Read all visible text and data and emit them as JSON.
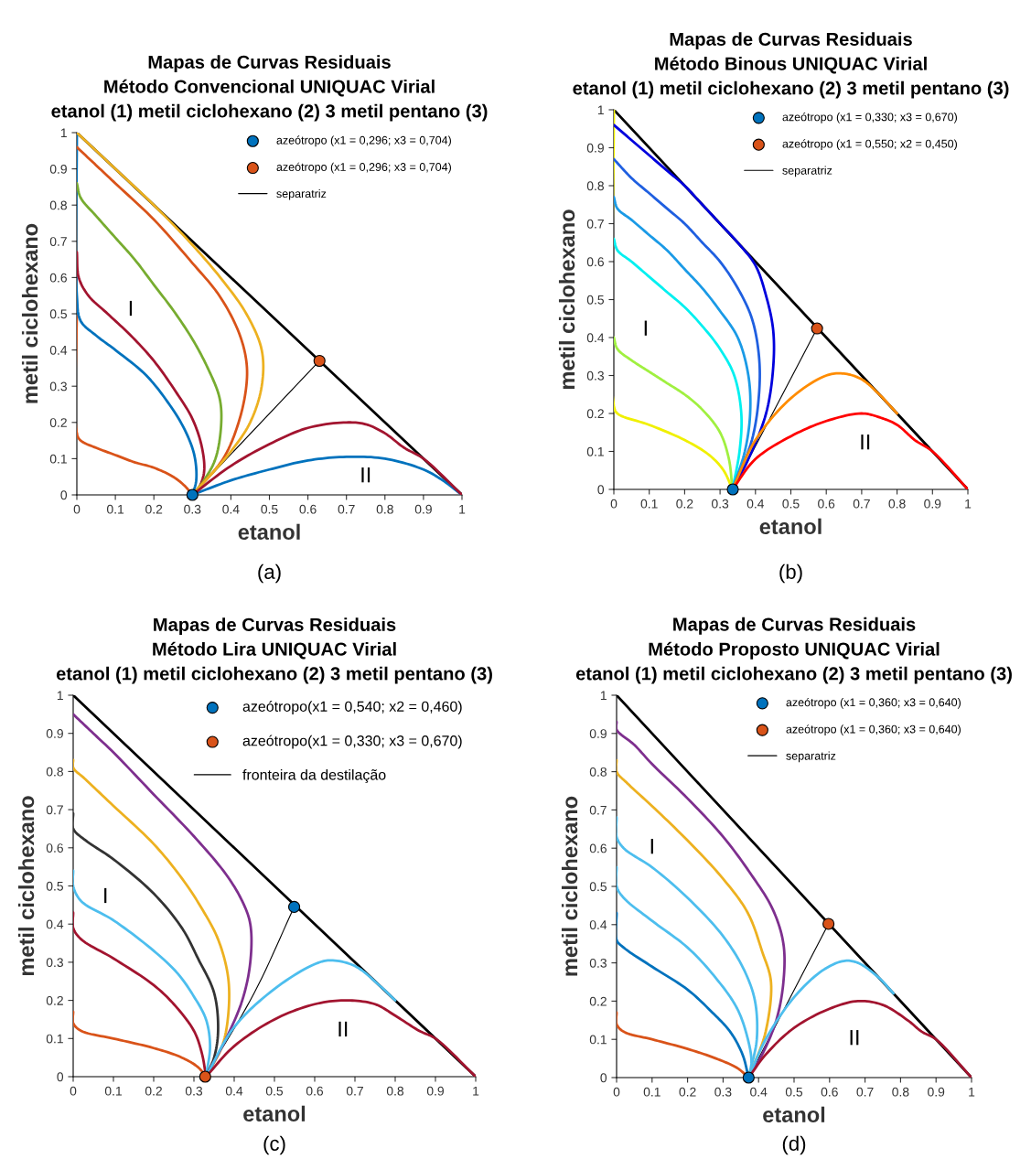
{
  "chart_data": [
    {
      "type": "line",
      "title": "Mapas de Curvas Residuais\nMétodo Convencional UNIQUAC Virial\netanol (1) metil ciclohexano (2) 3 metil pentano (3)",
      "xlabel": "etanol",
      "ylabel": "metil ciclohexano",
      "xlim": [
        0,
        1
      ],
      "ylim": [
        0,
        1
      ],
      "xticks": [
        0,
        0.1,
        0.2,
        0.3,
        0.4,
        0.5,
        0.6,
        0.7,
        0.8,
        0.9,
        1
      ],
      "yticks": [
        0,
        0.1,
        0.2,
        0.3,
        0.4,
        0.5,
        0.6,
        0.7,
        0.8,
        0.9,
        1
      ],
      "legend": "top right",
      "annotations": [
        "I",
        "II",
        "(a)"
      ],
      "series": [
        {
          "type": "line",
          "color": "#000000",
          "x": [
            0,
            1
          ],
          "values": [
            1,
            0
          ]
        },
        {
          "type": "line",
          "color": "#d95319",
          "x": [
            0,
            0,
            0.01,
            0.05,
            0.1,
            0.15,
            0.2,
            0.25,
            0.28,
            0.3
          ],
          "values": [
            0.52,
            0.17,
            0.15,
            0.13,
            0.11,
            0.09,
            0.075,
            0.05,
            0.025,
            0
          ]
        },
        {
          "type": "line",
          "color": "#0072bd",
          "x": [
            0,
            0,
            0.01,
            0.05,
            0.1,
            0.18,
            0.24,
            0.28,
            0.305,
            0.31,
            0.3
          ],
          "values": [
            1,
            0.55,
            0.48,
            0.44,
            0.4,
            0.33,
            0.25,
            0.18,
            0.11,
            0.04,
            0
          ]
        },
        {
          "type": "line",
          "color": "#a2142f",
          "x": [
            0,
            0.005,
            0.03,
            0.08,
            0.14,
            0.2,
            0.26,
            0.3,
            0.325,
            0.33,
            0.31
          ],
          "values": [
            0.67,
            0.6,
            0.55,
            0.5,
            0.44,
            0.37,
            0.28,
            0.21,
            0.13,
            0.06,
            0
          ]
        },
        {
          "type": "line",
          "color": "#77ac30",
          "x": [
            0,
            0.01,
            0.05,
            0.1,
            0.15,
            0.2,
            0.25,
            0.3,
            0.34,
            0.37,
            0.375,
            0.36,
            0.33,
            0.3
          ],
          "values": [
            0.86,
            0.82,
            0.77,
            0.71,
            0.65,
            0.58,
            0.51,
            0.43,
            0.35,
            0.27,
            0.2,
            0.1,
            0.04,
            0
          ]
        },
        {
          "type": "line",
          "color": "#d95319",
          "x": [
            0,
            0.05,
            0.1,
            0.2,
            0.3,
            0.37,
            0.42,
            0.44,
            0.44,
            0.42,
            0.38,
            0.3
          ],
          "values": [
            0.96,
            0.91,
            0.86,
            0.76,
            0.64,
            0.55,
            0.45,
            0.37,
            0.3,
            0.2,
            0.1,
            0
          ]
        },
        {
          "type": "line",
          "color": "#edb120",
          "x": [
            0,
            0.1,
            0.2,
            0.3,
            0.38,
            0.44,
            0.48,
            0.48,
            0.45,
            0.4,
            0.3
          ],
          "values": [
            1,
            0.9,
            0.8,
            0.69,
            0.59,
            0.5,
            0.4,
            0.3,
            0.2,
            0.12,
            0
          ]
        },
        {
          "type": "line",
          "color": "#0072bd",
          "x": [
            0.3,
            0.4,
            0.5,
            0.6,
            0.7,
            0.8,
            0.9,
            0.95,
            1
          ],
          "values": [
            0,
            0.04,
            0.07,
            0.095,
            0.105,
            0.1,
            0.07,
            0.04,
            0
          ]
        },
        {
          "type": "line",
          "color": "#a2142f",
          "x": [
            0.3,
            0.4,
            0.5,
            0.6,
            0.7,
            0.75,
            0.8,
            0.85,
            0.9,
            1
          ],
          "values": [
            0,
            0.08,
            0.14,
            0.185,
            0.2,
            0.195,
            0.17,
            0.13,
            0.1,
            0
          ]
        },
        {
          "type": "scatter",
          "name": "azeótropo (x1 = 0,296; x3 = 0,704)",
          "color": "#0072bd",
          "marker": "circle",
          "x": [
            0.3
          ],
          "values": [
            0
          ]
        },
        {
          "type": "scatter",
          "name": "azeótropo (x1 = 0,296; x3 = 0,704)",
          "color": "#d95319",
          "marker": "circle",
          "x": [
            0.63
          ],
          "values": [
            0.37
          ]
        },
        {
          "type": "line",
          "name": "separatriz",
          "color": "#000000",
          "x": [
            0.3,
            0.63
          ],
          "values": [
            0,
            0.37
          ]
        }
      ]
    },
    {
      "type": "line",
      "title": "Mapas de Curvas Residuais\nMétodo Binous UNIQUAC Virial\netanol (1) metil ciclohexano (2) 3 metil pentano (3)",
      "xlabel": "etanol",
      "ylabel": "metil ciclohexano",
      "xlim": [
        0,
        1
      ],
      "ylim": [
        0,
        1
      ],
      "xticks": [
        0,
        0.1,
        0.2,
        0.3,
        0.4,
        0.5,
        0.6,
        0.7,
        0.8,
        0.9,
        1
      ],
      "yticks": [
        0,
        0.1,
        0.2,
        0.3,
        0.4,
        0.5,
        0.6,
        0.7,
        0.8,
        0.9,
        1
      ],
      "legend": "top right",
      "annotations": [
        "I",
        "II",
        "(b)"
      ],
      "series": [
        {
          "type": "line",
          "color": "#000000",
          "x": [
            0,
            1
          ],
          "values": [
            1,
            0
          ]
        },
        {
          "type": "line",
          "color": "#f0f000",
          "x": [
            0,
            0,
            0.01,
            0.1,
            0.2,
            0.27,
            0.31,
            0.335
          ],
          "values": [
            1,
            0.22,
            0.2,
            0.17,
            0.13,
            0.09,
            0.05,
            0
          ]
        },
        {
          "type": "line",
          "color": "#a0f040",
          "x": [
            0,
            0.01,
            0.05,
            0.1,
            0.15,
            0.2,
            0.25,
            0.3,
            0.325,
            0.335
          ],
          "values": [
            0.4,
            0.37,
            0.34,
            0.31,
            0.28,
            0.25,
            0.21,
            0.15,
            0.08,
            0
          ]
        },
        {
          "type": "line",
          "color": "#00f0f0",
          "x": [
            0,
            0.01,
            0.05,
            0.1,
            0.15,
            0.2,
            0.25,
            0.3,
            0.34,
            0.36,
            0.355,
            0.335
          ],
          "values": [
            0.66,
            0.63,
            0.6,
            0.56,
            0.52,
            0.48,
            0.43,
            0.37,
            0.3,
            0.2,
            0.1,
            0
          ]
        },
        {
          "type": "line",
          "color": "#1a9ae6",
          "x": [
            0,
            0.01,
            0.05,
            0.1,
            0.15,
            0.2,
            0.25,
            0.3,
            0.35,
            0.38,
            0.385,
            0.37,
            0.335
          ],
          "values": [
            0.77,
            0.74,
            0.71,
            0.67,
            0.63,
            0.58,
            0.53,
            0.47,
            0.4,
            0.3,
            0.2,
            0.1,
            0
          ]
        },
        {
          "type": "line",
          "color": "#1f5fe0",
          "x": [
            0,
            0.05,
            0.1,
            0.15,
            0.2,
            0.25,
            0.3,
            0.35,
            0.39,
            0.41,
            0.41,
            0.39,
            0.335
          ],
          "values": [
            0.87,
            0.82,
            0.78,
            0.74,
            0.7,
            0.65,
            0.6,
            0.53,
            0.45,
            0.35,
            0.25,
            0.13,
            0
          ]
        },
        {
          "type": "line",
          "color": "#0000dd",
          "x": [
            0,
            0.05,
            0.1,
            0.15,
            0.2,
            0.25,
            0.3,
            0.35,
            0.4,
            0.43,
            0.45,
            0.45,
            0.43,
            0.38,
            0.335
          ],
          "values": [
            0.96,
            0.92,
            0.88,
            0.84,
            0.8,
            0.75,
            0.7,
            0.65,
            0.59,
            0.51,
            0.42,
            0.32,
            0.2,
            0.08,
            0
          ]
        },
        {
          "type": "line",
          "color": "#ff8c00",
          "x": [
            0.335,
            0.4,
            0.5,
            0.6,
            0.65,
            0.7,
            0.75,
            0.8
          ],
          "values": [
            0,
            0.13,
            0.24,
            0.3,
            0.305,
            0.29,
            0.25,
            0.2
          ]
        },
        {
          "type": "line",
          "color": "#ff0000",
          "x": [
            0.335,
            0.4,
            0.5,
            0.6,
            0.7,
            0.75,
            0.8,
            0.85,
            0.9,
            1
          ],
          "values": [
            0,
            0.08,
            0.14,
            0.18,
            0.2,
            0.19,
            0.17,
            0.13,
            0.1,
            0
          ]
        },
        {
          "type": "scatter",
          "name": "azeótropo (x1 = 0,330; x3 = 0,670)",
          "color": "#0072bd",
          "marker": "circle",
          "x": [
            0.336
          ],
          "values": [
            0
          ]
        },
        {
          "type": "scatter",
          "name": "azeótropo (x1 = 0,550; x2 = 0,450)",
          "color": "#d95319",
          "marker": "circle",
          "x": [
            0.574
          ],
          "values": [
            0.424
          ]
        },
        {
          "type": "line",
          "name": "separatriz",
          "color": "#000000",
          "x": [
            0.336,
            0.574
          ],
          "values": [
            0,
            0.424
          ]
        }
      ]
    },
    {
      "type": "line",
      "title": "Mapas de Curvas Residuais\nMétodo Lira UNIQUAC Virial\netanol (1) metil ciclohexano (2) 3 metil pentano (3)",
      "xlabel": "etanol",
      "ylabel": "metil ciclohexano",
      "xlim": [
        0,
        1
      ],
      "ylim": [
        0,
        1
      ],
      "xticks": [
        0,
        0.1,
        0.2,
        0.3,
        0.4,
        0.5,
        0.6,
        0.7,
        0.8,
        0.9,
        1
      ],
      "yticks": [
        0,
        0.1,
        0.2,
        0.3,
        0.4,
        0.5,
        0.6,
        0.7,
        0.8,
        0.9,
        1
      ],
      "legend": "top right",
      "annotations": [
        "I",
        "II",
        "(c)"
      ],
      "series": [
        {
          "type": "line",
          "color": "#000000",
          "x": [
            0,
            1
          ],
          "values": [
            1,
            0
          ]
        },
        {
          "type": "line",
          "color": "#d95319",
          "x": [
            0,
            0,
            0.02,
            0.1,
            0.2,
            0.27,
            0.31,
            0.33
          ],
          "values": [
            0.17,
            0.14,
            0.12,
            0.1,
            0.075,
            0.05,
            0.025,
            0
          ]
        },
        {
          "type": "line",
          "color": "#a2142f",
          "x": [
            0,
            0,
            0.02,
            0.1,
            0.2,
            0.25,
            0.3,
            0.32,
            0.33
          ],
          "values": [
            0.43,
            0.39,
            0.36,
            0.31,
            0.24,
            0.19,
            0.12,
            0.06,
            0
          ]
        },
        {
          "type": "line",
          "color": "#4dbeee",
          "x": [
            0,
            0,
            0.02,
            0.1,
            0.2,
            0.26,
            0.3,
            0.33,
            0.34,
            0.33
          ],
          "values": [
            0.54,
            0.5,
            0.46,
            0.41,
            0.33,
            0.27,
            0.21,
            0.15,
            0.08,
            0
          ]
        },
        {
          "type": "line",
          "color": "#333333",
          "x": [
            0,
            0,
            0.03,
            0.1,
            0.2,
            0.27,
            0.31,
            0.35,
            0.36,
            0.35,
            0.33
          ],
          "values": [
            0.69,
            0.65,
            0.62,
            0.57,
            0.48,
            0.39,
            0.31,
            0.22,
            0.12,
            0.05,
            0
          ]
        },
        {
          "type": "line",
          "color": "#edb120",
          "x": [
            0,
            0,
            0.03,
            0.1,
            0.2,
            0.27,
            0.32,
            0.36,
            0.385,
            0.385,
            0.37,
            0.33
          ],
          "values": [
            0.83,
            0.81,
            0.78,
            0.71,
            0.61,
            0.52,
            0.44,
            0.36,
            0.26,
            0.16,
            0.08,
            0
          ]
        },
        {
          "type": "line",
          "color": "#7e2f8e",
          "x": [
            0,
            0.05,
            0.1,
            0.2,
            0.3,
            0.38,
            0.42,
            0.44,
            0.44,
            0.42,
            0.38,
            0.33
          ],
          "values": [
            0.95,
            0.9,
            0.85,
            0.74,
            0.63,
            0.53,
            0.46,
            0.4,
            0.3,
            0.2,
            0.1,
            0
          ]
        },
        {
          "type": "line",
          "color": "#4dbeee",
          "x": [
            0.33,
            0.4,
            0.5,
            0.6,
            0.64,
            0.7,
            0.76,
            0.8
          ],
          "values": [
            0,
            0.13,
            0.23,
            0.295,
            0.305,
            0.29,
            0.24,
            0.2
          ]
        },
        {
          "type": "line",
          "color": "#a2142f",
          "x": [
            0.33,
            0.4,
            0.5,
            0.6,
            0.68,
            0.75,
            0.8,
            0.86,
            0.9,
            1
          ],
          "values": [
            0,
            0.08,
            0.15,
            0.19,
            0.2,
            0.19,
            0.16,
            0.12,
            0.1,
            0
          ]
        },
        {
          "type": "scatter",
          "name": "azeótropo(x1 = 0,540; x2 = 0,460)",
          "color": "#0072bd",
          "marker": "circle",
          "x": [
            0.549
          ],
          "values": [
            0.445
          ]
        },
        {
          "type": "scatter",
          "name": "azeótropo(x1 = 0,330; x3 = 0,670)",
          "color": "#d95319",
          "marker": "circle",
          "x": [
            0.328
          ],
          "values": [
            0
          ]
        },
        {
          "type": "line",
          "name": "fronteira da destilação",
          "color": "#000000",
          "x": [
            0.328,
            0.45,
            0.549
          ],
          "values": [
            0,
            0.22,
            0.445
          ]
        }
      ]
    },
    {
      "type": "line",
      "title": "Mapas de Curvas Residuais\nMétodo Proposto UNIQUAC Virial\netanol (1) metil ciclohexano (2) 3 metil pentano (3)",
      "xlabel": "etanol",
      "ylabel": "metil ciclohexano",
      "xlim": [
        0,
        1
      ],
      "ylim": [
        0,
        1
      ],
      "xticks": [
        0,
        0.1,
        0.2,
        0.3,
        0.4,
        0.5,
        0.6,
        0.7,
        0.8,
        0.9,
        1
      ],
      "yticks": [
        0,
        0.1,
        0.2,
        0.3,
        0.4,
        0.5,
        0.6,
        0.7,
        0.8,
        0.9,
        1
      ],
      "legend": "top right",
      "annotations": [
        "I",
        "II",
        "(d)"
      ],
      "series": [
        {
          "type": "line",
          "color": "#000000",
          "x": [
            0,
            1
          ],
          "values": [
            1,
            0
          ]
        },
        {
          "type": "line",
          "color": "#d95319",
          "x": [
            0,
            0,
            0.02,
            0.1,
            0.2,
            0.28,
            0.34,
            0.372
          ],
          "values": [
            0.17,
            0.14,
            0.12,
            0.1,
            0.075,
            0.05,
            0.025,
            0
          ]
        },
        {
          "type": "line",
          "color": "#0072bd",
          "x": [
            0,
            0,
            0.02,
            0.1,
            0.2,
            0.27,
            0.32,
            0.355,
            0.372
          ],
          "values": [
            0.43,
            0.36,
            0.34,
            0.29,
            0.23,
            0.17,
            0.12,
            0.06,
            0
          ]
        },
        {
          "type": "line",
          "color": "#4dbeee",
          "x": [
            0,
            0,
            0.02,
            0.1,
            0.2,
            0.28,
            0.34,
            0.37,
            0.38,
            0.372
          ],
          "values": [
            0.55,
            0.5,
            0.47,
            0.41,
            0.34,
            0.26,
            0.18,
            0.1,
            0.04,
            0
          ]
        },
        {
          "type": "line",
          "color": "#4dbeee",
          "x": [
            0,
            0,
            0.02,
            0.1,
            0.2,
            0.3,
            0.36,
            0.39,
            0.395,
            0.38,
            0.372
          ],
          "values": [
            0.68,
            0.63,
            0.6,
            0.55,
            0.47,
            0.37,
            0.28,
            0.2,
            0.1,
            0.03,
            0
          ]
        },
        {
          "type": "line",
          "color": "#edb120",
          "x": [
            0,
            0,
            0.03,
            0.1,
            0.2,
            0.3,
            0.37,
            0.41,
            0.435,
            0.42,
            0.39,
            0.372
          ],
          "values": [
            0.83,
            0.8,
            0.77,
            0.71,
            0.62,
            0.52,
            0.43,
            0.33,
            0.25,
            0.12,
            0.04,
            0
          ]
        },
        {
          "type": "line",
          "color": "#7e2f8e",
          "x": [
            0,
            0,
            0.05,
            0.1,
            0.2,
            0.3,
            0.38,
            0.44,
            0.47,
            0.47,
            0.45,
            0.41,
            0.372
          ],
          "values": [
            0.93,
            0.91,
            0.87,
            0.82,
            0.73,
            0.63,
            0.53,
            0.44,
            0.35,
            0.25,
            0.15,
            0.06,
            0
          ]
        },
        {
          "type": "line",
          "color": "#4dbeee",
          "x": [
            0.372,
            0.42,
            0.5,
            0.58,
            0.64,
            0.68,
            0.74,
            0.78
          ],
          "values": [
            0,
            0.1,
            0.21,
            0.28,
            0.305,
            0.3,
            0.26,
            0.22
          ]
        },
        {
          "type": "line",
          "color": "#a2142f",
          "x": [
            0.372,
            0.42,
            0.5,
            0.6,
            0.68,
            0.75,
            0.82,
            0.86,
            0.9,
            1
          ],
          "values": [
            0,
            0.06,
            0.13,
            0.18,
            0.2,
            0.19,
            0.15,
            0.12,
            0.1,
            0
          ]
        },
        {
          "type": "scatter",
          "name": "azeótropo (x1 = 0,360; x3 = 0,640)",
          "color": "#0072bd",
          "marker": "circle",
          "x": [
            0.372
          ],
          "values": [
            0
          ]
        },
        {
          "type": "scatter",
          "name": "azeótropo (x1 = 0,360; x3 = 0,640)",
          "color": "#d95319",
          "marker": "circle",
          "x": [
            0.597
          ],
          "values": [
            0.402
          ]
        },
        {
          "type": "line",
          "name": "separatriz",
          "color": "#000000",
          "x": [
            0.372,
            0.597
          ],
          "values": [
            0,
            0.402
          ]
        }
      ]
    }
  ]
}
